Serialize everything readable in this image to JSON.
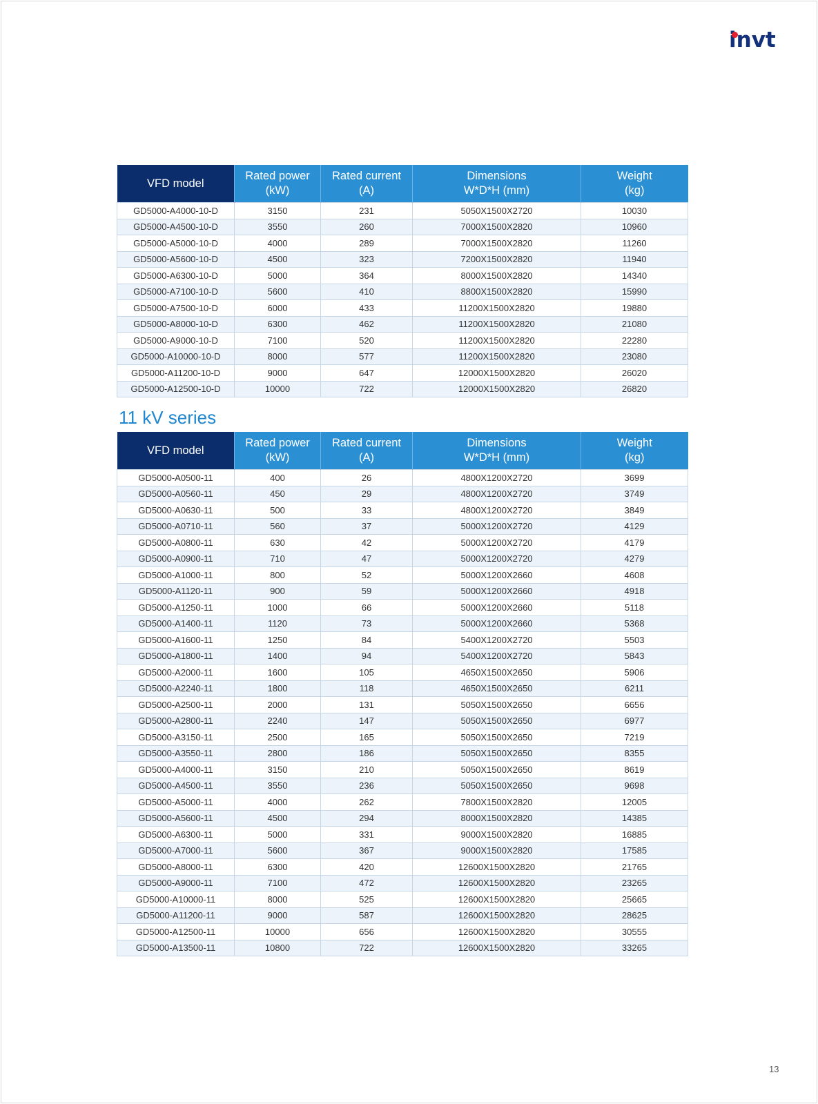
{
  "logo": {
    "text": "invt",
    "dot_color": "#e5202e",
    "color": "#13307a"
  },
  "colors": {
    "header_dark": "#0b2d6b",
    "header_blue": "#2b8fd3",
    "row_alt": "#ecf3fb",
    "title": "#1f86cf"
  },
  "headers": [
    {
      "line1": "VFD model",
      "line2": ""
    },
    {
      "line1": "Rated power",
      "line2": "(kW)"
    },
    {
      "line1": "Rated current",
      "line2": "(A)"
    },
    {
      "line1": "Dimensions",
      "line2": "W*D*H (mm)"
    },
    {
      "line1": "Weight",
      "line2": "(kg)"
    }
  ],
  "table_10kv": {
    "rows": [
      [
        "GD5000-A4000-10-D",
        "3150",
        "231",
        "5050X1500X2720",
        "10030"
      ],
      [
        "GD5000-A4500-10-D",
        "3550",
        "260",
        "7000X1500X2820",
        "10960"
      ],
      [
        "GD5000-A5000-10-D",
        "4000",
        "289",
        "7000X1500X2820",
        "11260"
      ],
      [
        "GD5000-A5600-10-D",
        "4500",
        "323",
        "7200X1500X2820",
        "11940"
      ],
      [
        "GD5000-A6300-10-D",
        "5000",
        "364",
        "8000X1500X2820",
        "14340"
      ],
      [
        "GD5000-A7100-10-D",
        "5600",
        "410",
        "8800X1500X2820",
        "15990"
      ],
      [
        "GD5000-A7500-10-D",
        "6000",
        "433",
        "11200X1500X2820",
        "19880"
      ],
      [
        "GD5000-A8000-10-D",
        "6300",
        "462",
        "11200X1500X2820",
        "21080"
      ],
      [
        "GD5000-A9000-10-D",
        "7100",
        "520",
        "11200X1500X2820",
        "22280"
      ],
      [
        "GD5000-A10000-10-D",
        "8000",
        "577",
        "11200X1500X2820",
        "23080"
      ],
      [
        "GD5000-A11200-10-D",
        "9000",
        "647",
        "12000X1500X2820",
        "26020"
      ],
      [
        "GD5000-A12500-10-D",
        "10000",
        "722",
        "12000X1500X2820",
        "26820"
      ]
    ]
  },
  "section_11kv": {
    "title": "11 kV series"
  },
  "table_11kv": {
    "rows": [
      [
        "GD5000-A0500-11",
        "400",
        "26",
        "4800X1200X2720",
        "3699"
      ],
      [
        "GD5000-A0560-11",
        "450",
        "29",
        "4800X1200X2720",
        "3749"
      ],
      [
        "GD5000-A0630-11",
        "500",
        "33",
        "4800X1200X2720",
        "3849"
      ],
      [
        "GD5000-A0710-11",
        "560",
        "37",
        "5000X1200X2720",
        "4129"
      ],
      [
        "GD5000-A0800-11",
        "630",
        "42",
        "5000X1200X2720",
        "4179"
      ],
      [
        "GD5000-A0900-11",
        "710",
        "47",
        "5000X1200X2720",
        "4279"
      ],
      [
        "GD5000-A1000-11",
        "800",
        "52",
        "5000X1200X2660",
        "4608"
      ],
      [
        "GD5000-A1120-11",
        "900",
        "59",
        "5000X1200X2660",
        "4918"
      ],
      [
        "GD5000-A1250-11",
        "1000",
        "66",
        "5000X1200X2660",
        "5118"
      ],
      [
        "GD5000-A1400-11",
        "1120",
        "73",
        "5000X1200X2660",
        "5368"
      ],
      [
        "GD5000-A1600-11",
        "1250",
        "84",
        "5400X1200X2720",
        "5503"
      ],
      [
        "GD5000-A1800-11",
        "1400",
        "94",
        "5400X1200X2720",
        "5843"
      ],
      [
        "GD5000-A2000-11",
        "1600",
        "105",
        "4650X1500X2650",
        "5906"
      ],
      [
        "GD5000-A2240-11",
        "1800",
        "118",
        "4650X1500X2650",
        "6211"
      ],
      [
        "GD5000-A2500-11",
        "2000",
        "131",
        "5050X1500X2650",
        "6656"
      ],
      [
        "GD5000-A2800-11",
        "2240",
        "147",
        "5050X1500X2650",
        "6977"
      ],
      [
        "GD5000-A3150-11",
        "2500",
        "165",
        "5050X1500X2650",
        "7219"
      ],
      [
        "GD5000-A3550-11",
        "2800",
        "186",
        "5050X1500X2650",
        "8355"
      ],
      [
        "GD5000-A4000-11",
        "3150",
        "210",
        "5050X1500X2650",
        "8619"
      ],
      [
        "GD5000-A4500-11",
        "3550",
        "236",
        "5050X1500X2650",
        "9698"
      ],
      [
        "GD5000-A5000-11",
        "4000",
        "262",
        "7800X1500X2820",
        "12005"
      ],
      [
        "GD5000-A5600-11",
        "4500",
        "294",
        "8000X1500X2820",
        "14385"
      ],
      [
        "GD5000-A6300-11",
        "5000",
        "331",
        "9000X1500X2820",
        "16885"
      ],
      [
        "GD5000-A7000-11",
        "5600",
        "367",
        "9000X1500X2820",
        "17585"
      ],
      [
        "GD5000-A8000-11",
        "6300",
        "420",
        "12600X1500X2820",
        "21765"
      ],
      [
        "GD5000-A9000-11",
        "7100",
        "472",
        "12600X1500X2820",
        "23265"
      ],
      [
        "GD5000-A10000-11",
        "8000",
        "525",
        "12600X1500X2820",
        "25665"
      ],
      [
        "GD5000-A11200-11",
        "9000",
        "587",
        "12600X1500X2820",
        "28625"
      ],
      [
        "GD5000-A12500-11",
        "10000",
        "656",
        "12600X1500X2820",
        "30555"
      ],
      [
        "GD5000-A13500-11",
        "10800",
        "722",
        "12600X1500X2820",
        "33265"
      ]
    ]
  },
  "page_number": "13"
}
